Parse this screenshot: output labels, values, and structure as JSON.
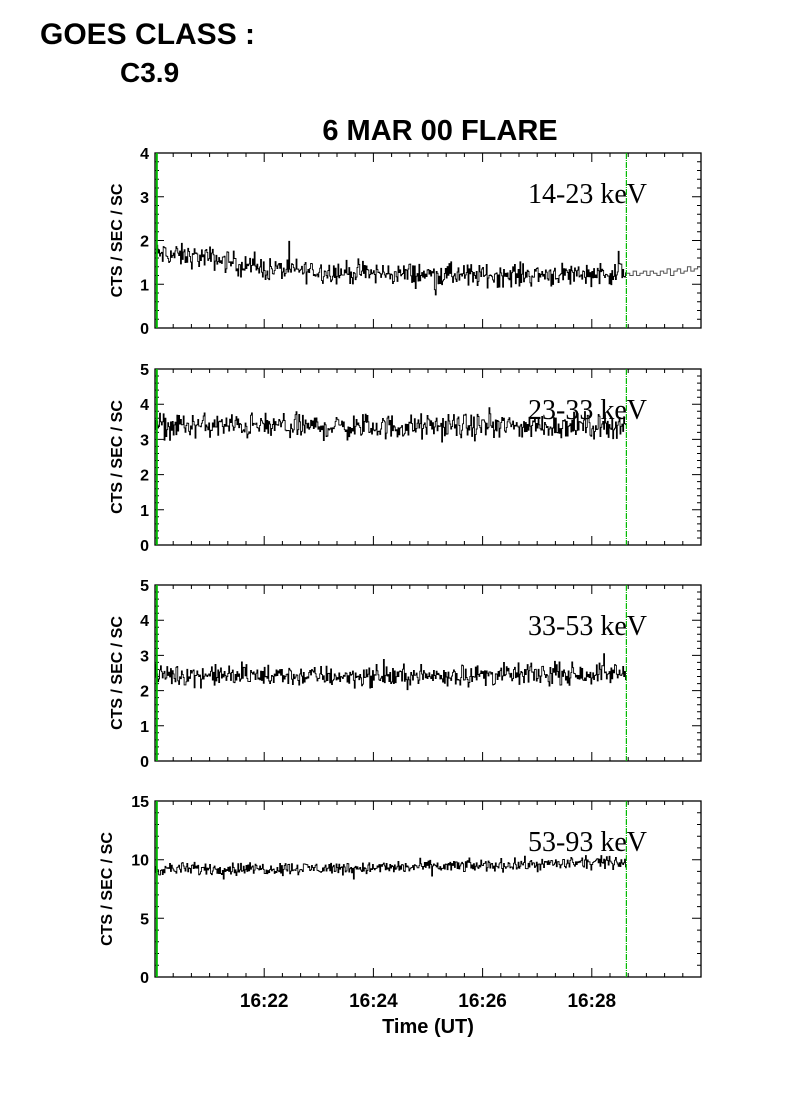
{
  "header": {
    "goes_label": "GOES CLASS :",
    "goes_value": "C3.9"
  },
  "chart_data": {
    "type": "line",
    "title": "6 MAR 00 FLARE",
    "xlabel": "Time (UT)",
    "x_tick_labels": [
      "16:22",
      "16:24",
      "16:26",
      "16:28"
    ],
    "xlim": [
      "16:20:00",
      "16:30:00"
    ],
    "marker_color": "#00bb00",
    "marker_times": [
      "16:20:02",
      "16:28:38"
    ],
    "line_color": "#000000",
    "panels": [
      {
        "band": "14-23 keV",
        "ylabel": "CTS / SEC / SC",
        "ylim": [
          0,
          4
        ],
        "y_ticks": [
          "0",
          "1",
          "2",
          "3",
          "4"
        ],
        "data_end": "16:28:38",
        "trend": [
          [
            "16:20:00",
            1.7
          ],
          [
            "16:21:00",
            1.6
          ],
          [
            "16:22:00",
            1.35
          ],
          [
            "16:23:00",
            1.3
          ],
          [
            "16:24:00",
            1.25
          ],
          [
            "16:26:00",
            1.2
          ],
          [
            "16:28:00",
            1.25
          ],
          [
            "16:28:38",
            1.25
          ]
        ],
        "noise": 0.22,
        "tail": {
          "start": "16:28:38",
          "end": "16:30:00",
          "values": [
            1.25,
            1.2,
            1.3,
            1.2,
            1.25,
            1.3,
            1.2,
            1.3,
            1.25,
            1.2,
            1.3,
            1.25,
            1.35,
            1.2,
            1.3,
            1.35,
            1.25,
            1.3,
            1.4,
            1.3,
            1.35,
            1.4
          ]
        }
      },
      {
        "band": "23-33 keV",
        "ylabel": "CTS / SEC / SC",
        "ylim": [
          0,
          5
        ],
        "y_ticks": [
          "0",
          "1",
          "2",
          "3",
          "4",
          "5"
        ],
        "data_end": "16:28:38",
        "trend": [
          [
            "16:20:00",
            3.4
          ],
          [
            "16:24:00",
            3.35
          ],
          [
            "16:28:38",
            3.4
          ]
        ],
        "noise": 0.3
      },
      {
        "band": "33-53 keV",
        "ylabel": "CTS / SEC / SC",
        "ylim": [
          0,
          5
        ],
        "y_ticks": [
          "0",
          "1",
          "2",
          "3",
          "4",
          "5"
        ],
        "data_end": "16:28:38",
        "trend": [
          [
            "16:20:00",
            2.45
          ],
          [
            "16:24:00",
            2.4
          ],
          [
            "16:28:38",
            2.5
          ]
        ],
        "noise": 0.25
      },
      {
        "band": "53-93 keV",
        "ylabel": "CTS / SEC / SC",
        "ylim": [
          0,
          15
        ],
        "y_ticks": [
          "0",
          "5",
          "10",
          "15"
        ],
        "data_end": "16:28:38",
        "trend": [
          [
            "16:20:00",
            9.2
          ],
          [
            "16:24:00",
            9.3
          ],
          [
            "16:26:00",
            9.5
          ],
          [
            "16:28:38",
            9.8
          ]
        ],
        "noise": 0.45
      }
    ]
  }
}
